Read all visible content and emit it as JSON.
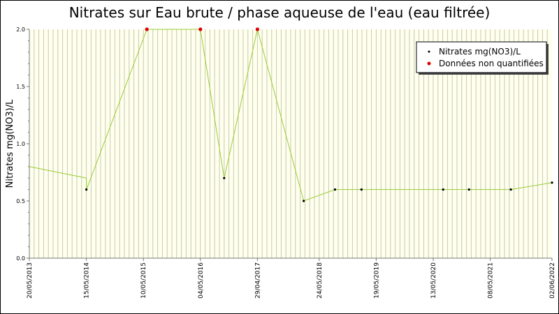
{
  "chart_data": {
    "type": "line",
    "title": "Nitrates sur Eau brute / phase aqueuse de l'eau (eau filtrée)",
    "xlabel": "",
    "ylabel": "Nitrates mg(NO3)/L",
    "ylim": [
      0,
      2
    ],
    "y_ticks": [
      "0.0",
      "0.5",
      "1.0",
      "1.5",
      "2.0"
    ],
    "x_range": [
      "2013-05-20",
      "2022-06-02"
    ],
    "x_ticks": [
      {
        "date": "2013-05-20",
        "label": "20/05/2013"
      },
      {
        "date": "2014-05-15",
        "label": "15/05/2014"
      },
      {
        "date": "2015-05-10",
        "label": "10/05/2015"
      },
      {
        "date": "2016-05-04",
        "label": "04/05/2016"
      },
      {
        "date": "2017-04-29",
        "label": "29/04/2017"
      },
      {
        "date": "2018-05-24",
        "label": "24/05/2018"
      },
      {
        "date": "2019-05-19",
        "label": "19/05/2019"
      },
      {
        "date": "2020-05-13",
        "label": "13/05/2020"
      },
      {
        "date": "2021-05-08",
        "label": "08/05/2021"
      },
      {
        "date": "2022-06-02",
        "label": "02/06/2022"
      }
    ],
    "grid": true,
    "legend_position": "top-right",
    "line_color": "#99cc33",
    "series": [
      {
        "name": "Nitrates mg(NO3)/L",
        "color": "#000000",
        "points": [
          {
            "x": "2014-05-15",
            "y": 0.6
          },
          {
            "x": "2016-10-01",
            "y": 0.7
          },
          {
            "x": "2018-02-15",
            "y": 0.5
          },
          {
            "x": "2018-09-01",
            "y": 0.6
          },
          {
            "x": "2019-02-15",
            "y": 0.6
          },
          {
            "x": "2020-07-15",
            "y": 0.6
          },
          {
            "x": "2020-12-25",
            "y": 0.6
          },
          {
            "x": "2021-09-15",
            "y": 0.6
          },
          {
            "x": "2022-06-02",
            "y": 0.66
          }
        ]
      },
      {
        "name": "Données non quantifiées",
        "color": "#dd0000",
        "points": [
          {
            "x": "2015-06-01",
            "y": 2.0
          },
          {
            "x": "2016-05-04",
            "y": 2.0
          },
          {
            "x": "2017-04-29",
            "y": 2.0
          }
        ]
      }
    ],
    "line_points": [
      {
        "x": "2013-05-20",
        "y": 0.8
      },
      {
        "x": "2014-05-15",
        "y": 0.7
      },
      {
        "x": "2014-05-16",
        "y": 0.6
      },
      {
        "x": "2015-06-01",
        "y": 2.0
      },
      {
        "x": "2016-05-04",
        "y": 2.0
      },
      {
        "x": "2016-10-01",
        "y": 0.7
      },
      {
        "x": "2017-04-29",
        "y": 2.0
      },
      {
        "x": "2018-02-15",
        "y": 0.5
      },
      {
        "x": "2018-09-01",
        "y": 0.6
      },
      {
        "x": "2019-02-15",
        "y": 0.6
      },
      {
        "x": "2020-07-15",
        "y": 0.6
      },
      {
        "x": "2020-12-25",
        "y": 0.6
      },
      {
        "x": "2021-09-15",
        "y": 0.6
      },
      {
        "x": "2022-06-02",
        "y": 0.66
      }
    ]
  }
}
